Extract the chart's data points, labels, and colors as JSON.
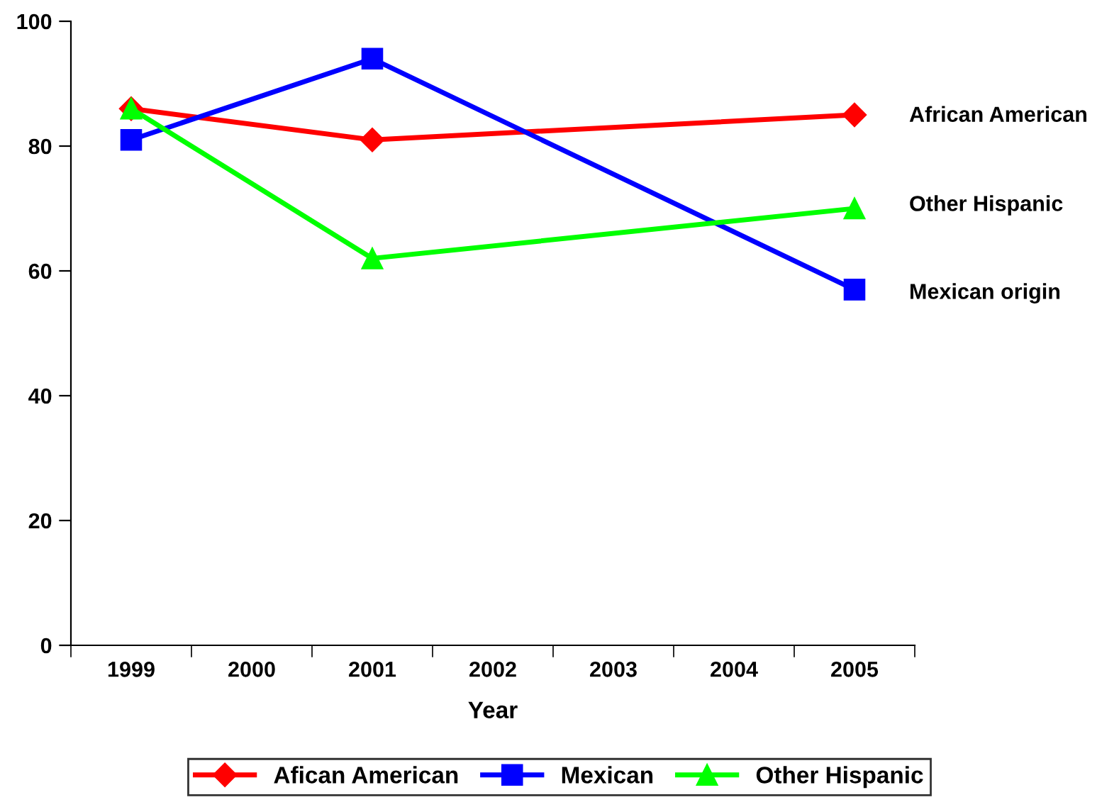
{
  "chart_data": {
    "type": "line",
    "xlabel": "Year",
    "categories": [
      "1999",
      "2000",
      "2001",
      "2002",
      "2003",
      "2004",
      "2005"
    ],
    "series": [
      {
        "name": "Afican American",
        "color": "#ff0000",
        "marker": "diamond",
        "values": [
          86,
          null,
          81,
          null,
          null,
          null,
          85
        ]
      },
      {
        "name": "Mexican",
        "color": "#0000ff",
        "marker": "square",
        "values": [
          81,
          null,
          94,
          null,
          null,
          null,
          57
        ]
      },
      {
        "name": "Other Hispanic",
        "color": "#00ff00",
        "marker": "triangle",
        "values": [
          86,
          null,
          62,
          null,
          null,
          null,
          70
        ]
      }
    ],
    "ylim": [
      0,
      100
    ],
    "yticks": [
      0,
      20,
      40,
      60,
      80,
      100
    ],
    "annotations": [
      "African American",
      "Other Hispanic",
      "Mexican origin"
    ],
    "grid": false,
    "legend": "bottom",
    "line_style": "solid"
  }
}
